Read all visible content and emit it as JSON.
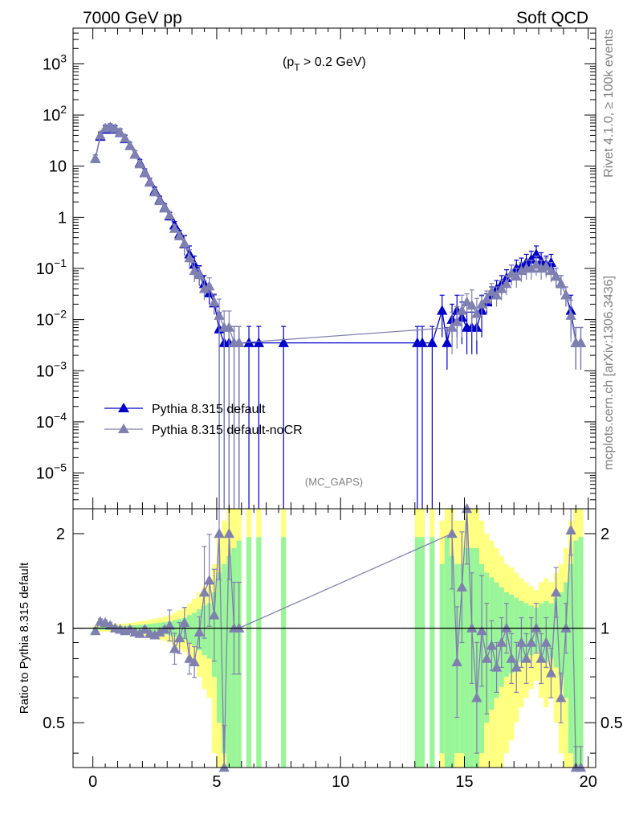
{
  "header": {
    "left_title": "7000 GeV pp",
    "right_title": "Soft QCD",
    "cut_label_main": "(p",
    "cut_label_sub": "T",
    "cut_label_tail": " > 0.2 GeV)",
    "analysis_tag": "(MC_GAPS)",
    "side_text_top": "Rivet 4.1.0, ≥ 100k events",
    "side_text_bottom": "mcplots.cern.ch [arXiv:1306.3436]"
  },
  "colors": {
    "series_default": "#0000cc",
    "series_nocr": "#8080b0",
    "band_yellow": "#ffff80",
    "band_green": "#99f599"
  },
  "chart_data": [
    {
      "type": "line",
      "title": "",
      "xlabel": "",
      "ylabel": "",
      "yscale": "log",
      "xlim": [
        -0.8,
        20.3
      ],
      "ylim": [
        2e-06,
        5000
      ],
      "y_tick_labels": [
        "10^-5",
        "10^-4",
        "10^-3",
        "10^-2",
        "10^-1",
        "1",
        "10",
        "10^2",
        "10^3"
      ],
      "legend": {
        "position": "lower-left",
        "entries": [
          "Pythia 8.315 default",
          "Pythia 8.315 default-noCR"
        ]
      },
      "series": [
        {
          "name": "Pythia 8.315 default",
          "x": [
            0.1,
            0.3,
            0.5,
            0.7,
            0.9,
            1.1,
            1.3,
            1.5,
            1.7,
            1.9,
            2.1,
            2.3,
            2.5,
            2.7,
            2.9,
            3.1,
            3.3,
            3.5,
            3.7,
            3.9,
            4.1,
            4.3,
            4.5,
            4.7,
            4.9,
            5.1,
            5.3,
            5.5,
            5.7,
            5.9,
            6.3,
            6.7,
            7.7,
            13.1,
            13.3,
            13.7,
            14.1,
            14.3,
            14.5,
            14.7,
            14.9,
            15.1,
            15.3,
            15.5,
            15.7,
            15.9,
            16.1,
            16.3,
            16.5,
            16.7,
            16.9,
            17.1,
            17.3,
            17.5,
            17.7,
            17.9,
            18.1,
            18.3,
            18.5,
            18.7,
            18.9,
            19.1,
            19.3,
            19.5,
            19.7
          ],
          "values": [
            14,
            38,
            52,
            55,
            52,
            45,
            34,
            25,
            17,
            11.5,
            7.5,
            4.9,
            3.3,
            2.2,
            1.55,
            1.05,
            0.7,
            0.47,
            0.3,
            0.19,
            0.12,
            0.078,
            0.05,
            0.033,
            0.021,
            0.0065,
            0.0035,
            0.0035,
            0.0035,
            0.0035,
            0.0035,
            0.0035,
            0.0035,
            0.0035,
            0.0035,
            0.0035,
            0.015,
            0.0035,
            0.01,
            0.015,
            0.011,
            0.007,
            0.007,
            0.007,
            0.015,
            0.022,
            0.03,
            0.04,
            0.05,
            0.065,
            0.08,
            0.1,
            0.11,
            0.13,
            0.15,
            0.19,
            0.14,
            0.12,
            0.13,
            0.07,
            0.05,
            0.03,
            0.015,
            0.0035,
            0.0035
          ]
        },
        {
          "name": "Pythia 8.315 default-noCR",
          "x": [
            0.1,
            0.3,
            0.5,
            0.7,
            0.9,
            1.1,
            1.3,
            1.5,
            1.7,
            1.9,
            2.1,
            2.3,
            2.5,
            2.7,
            2.9,
            3.1,
            3.3,
            3.5,
            3.7,
            3.9,
            4.1,
            4.3,
            4.5,
            4.7,
            4.9,
            5.1,
            5.3,
            5.5,
            5.7,
            5.9,
            14.5,
            14.7,
            14.9,
            15.1,
            15.3,
            15.5,
            15.7,
            15.9,
            16.1,
            16.3,
            16.5,
            16.7,
            16.9,
            17.1,
            17.3,
            17.5,
            17.7,
            17.9,
            18.1,
            18.3,
            18.5,
            18.7,
            18.9,
            19.1,
            19.3,
            19.5,
            19.7
          ],
          "values": [
            14,
            40,
            55,
            58,
            54,
            46,
            35,
            25,
            17,
            11,
            7.3,
            4.8,
            3.1,
            2.1,
            1.5,
            1.1,
            0.6,
            0.43,
            0.31,
            0.16,
            0.09,
            0.075,
            0.04,
            0.045,
            0.022,
            0.012,
            0.007,
            0.007,
            0.0035,
            0.0035,
            0.007,
            0.009,
            0.015,
            0.022,
            0.019,
            0.013,
            0.02,
            0.025,
            0.035,
            0.03,
            0.04,
            0.05,
            0.08,
            0.07,
            0.09,
            0.1,
            0.1,
            0.12,
            0.1,
            0.11,
            0.09,
            0.07,
            0.05,
            0.03,
            0.012,
            0.0035,
            0.0035
          ]
        }
      ]
    },
    {
      "type": "line",
      "title": "",
      "xlabel": "",
      "ylabel": "Ratio to Pythia 8.315 default",
      "yscale": "log",
      "xlim": [
        -0.8,
        20.3
      ],
      "ylim": [
        0.36,
        2.4
      ],
      "x_ticks": [
        0,
        5,
        10,
        15,
        20
      ],
      "x_tick_labels": [
        "0",
        "5",
        "10",
        "15",
        "20"
      ],
      "y_ticks": [
        0.5,
        1,
        2
      ],
      "y_tick_labels": [
        "0.5",
        "1",
        "2"
      ],
      "reference_line": 1,
      "bands": {
        "x": [
          0.1,
          0.3,
          0.5,
          0.7,
          0.9,
          1.1,
          1.3,
          1.5,
          1.7,
          1.9,
          2.1,
          2.3,
          2.5,
          2.7,
          2.9,
          3.1,
          3.3,
          3.5,
          3.7,
          3.9,
          4.1,
          4.3,
          4.5,
          4.7,
          4.9,
          5.1,
          5.3,
          5.5,
          5.7,
          5.9,
          6.3,
          6.7,
          7.7,
          13.1,
          13.3,
          13.7,
          14.1,
          14.3,
          14.5,
          14.7,
          14.9,
          15.1,
          15.3,
          15.5,
          15.7,
          15.9,
          16.1,
          16.3,
          16.5,
          16.7,
          16.9,
          17.1,
          17.3,
          17.5,
          17.7,
          17.9,
          18.1,
          18.3,
          18.5,
          18.7,
          18.9,
          19.1,
          19.3,
          19.5,
          19.7
        ],
        "green_halfwidth": [
          0.01,
          0.012,
          0.013,
          0.014,
          0.015,
          0.016,
          0.018,
          0.02,
          0.022,
          0.025,
          0.028,
          0.032,
          0.036,
          0.04,
          0.045,
          0.05,
          0.06,
          0.07,
          0.08,
          0.1,
          0.12,
          0.15,
          0.18,
          0.2,
          0.3,
          0.5,
          0.6,
          0.7,
          0.8,
          0.9,
          0.95,
          0.95,
          0.95,
          0.95,
          0.95,
          0.95,
          0.6,
          0.95,
          0.7,
          0.6,
          0.6,
          0.8,
          0.8,
          0.8,
          0.6,
          0.5,
          0.45,
          0.4,
          0.35,
          0.3,
          0.28,
          0.25,
          0.22,
          0.2,
          0.18,
          0.16,
          0.2,
          0.22,
          0.2,
          0.25,
          0.3,
          0.4,
          0.6,
          0.9,
          0.95
        ],
        "yellow_halfwidth": [
          0.02,
          0.024,
          0.026,
          0.028,
          0.03,
          0.032,
          0.036,
          0.04,
          0.044,
          0.05,
          0.056,
          0.064,
          0.072,
          0.08,
          0.09,
          0.1,
          0.12,
          0.14,
          0.16,
          0.2,
          0.24,
          0.3,
          0.36,
          0.4,
          0.6,
          1.0,
          1.2,
          1.4,
          1.6,
          1.8,
          1.9,
          1.9,
          1.9,
          1.9,
          1.9,
          1.9,
          1.2,
          1.9,
          1.4,
          1.2,
          1.2,
          1.6,
          1.6,
          1.6,
          1.2,
          1.0,
          0.9,
          0.8,
          0.7,
          0.6,
          0.56,
          0.5,
          0.44,
          0.4,
          0.36,
          0.32,
          0.4,
          0.44,
          0.4,
          0.5,
          0.6,
          0.8,
          1.2,
          1.8,
          1.9
        ]
      },
      "series": [
        {
          "name": "Pythia 8.315 default-noCR / Pythia 8.315 default",
          "x": [
            0.1,
            0.3,
            0.5,
            0.7,
            0.9,
            1.1,
            1.3,
            1.5,
            1.7,
            1.9,
            2.1,
            2.3,
            2.5,
            2.7,
            2.9,
            3.1,
            3.3,
            3.5,
            3.7,
            3.9,
            4.1,
            4.3,
            4.5,
            4.7,
            4.9,
            5.1,
            5.3,
            5.5,
            5.7,
            5.9,
            14.5,
            14.7,
            14.9,
            15.1,
            15.3,
            15.5,
            15.7,
            15.9,
            16.1,
            16.3,
            16.5,
            16.7,
            16.9,
            17.1,
            17.3,
            17.5,
            17.7,
            17.9,
            18.1,
            18.3,
            18.5,
            18.7,
            18.9,
            19.1,
            19.3,
            19.5,
            19.7
          ],
          "values": [
            0.98,
            1.05,
            1.04,
            1.02,
            1.0,
            0.99,
            0.98,
            0.99,
            0.97,
            0.96,
            0.99,
            0.96,
            0.95,
            0.97,
            0.99,
            1.02,
            0.86,
            0.93,
            1.04,
            0.8,
            0.78,
            0.97,
            1.3,
            1.42,
            1.1,
            2.0,
            0.35,
            2.0,
            1.0,
            1.0,
            2.0,
            0.78,
            1.35,
            2.4,
            1.0,
            0.6,
            0.98,
            0.8,
            0.88,
            0.75,
            0.9,
            1.0,
            0.8,
            0.75,
            0.9,
            0.8,
            0.9,
            1.0,
            0.8,
            0.9,
            0.72,
            1.3,
            0.6,
            1.0,
            2.05,
            0.35,
            0.35
          ]
        }
      ]
    }
  ]
}
